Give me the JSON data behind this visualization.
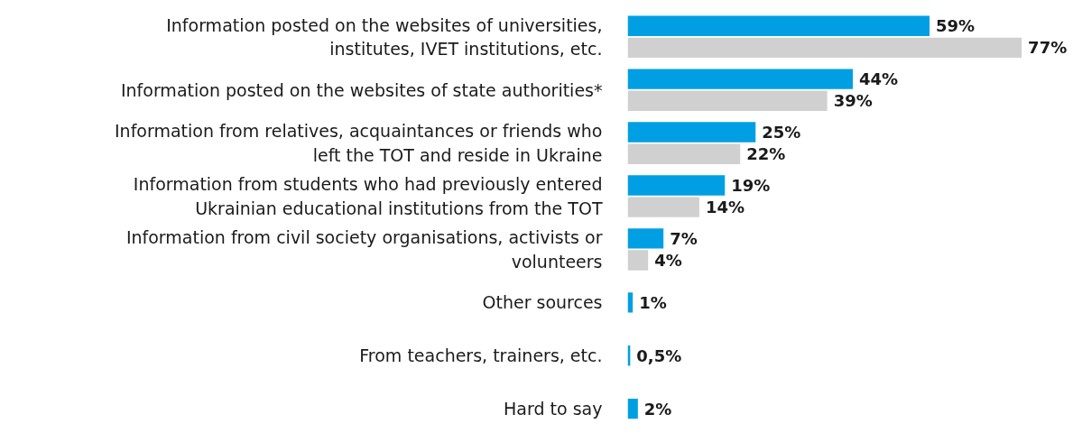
{
  "chart_data": {
    "type": "bar",
    "orientation": "horizontal",
    "categories": [
      "Information posted on the websites of universities,\ninstitutes, IVET institutions, etc.",
      "Information posted on the websites of state authorities*",
      "Information from relatives, acquaintances or friends who\nleft the TOT and reside in Ukraine",
      "Information from students who had previously entered\nUkrainian educational institutions from the TOT",
      "Information from civil society organisations, activists or\nvolunteers",
      "Other sources",
      "From teachers, trainers, etc.",
      "Hard to say"
    ],
    "series": [
      {
        "color": "#009fe3",
        "values": [
          59,
          44,
          25,
          19,
          7,
          1,
          0.5,
          2
        ],
        "value_labels": [
          "59%",
          "44%",
          "25%",
          "19%",
          "7%",
          "1%",
          "0,5%",
          "2%"
        ]
      },
      {
        "color": "#d0d0d0",
        "values": [
          77,
          39,
          22,
          14,
          4,
          null,
          null,
          null
        ],
        "value_labels": [
          "77%",
          "39%",
          "22%",
          "14%",
          "4%",
          null,
          null,
          null
        ]
      }
    ],
    "grid": false
  }
}
